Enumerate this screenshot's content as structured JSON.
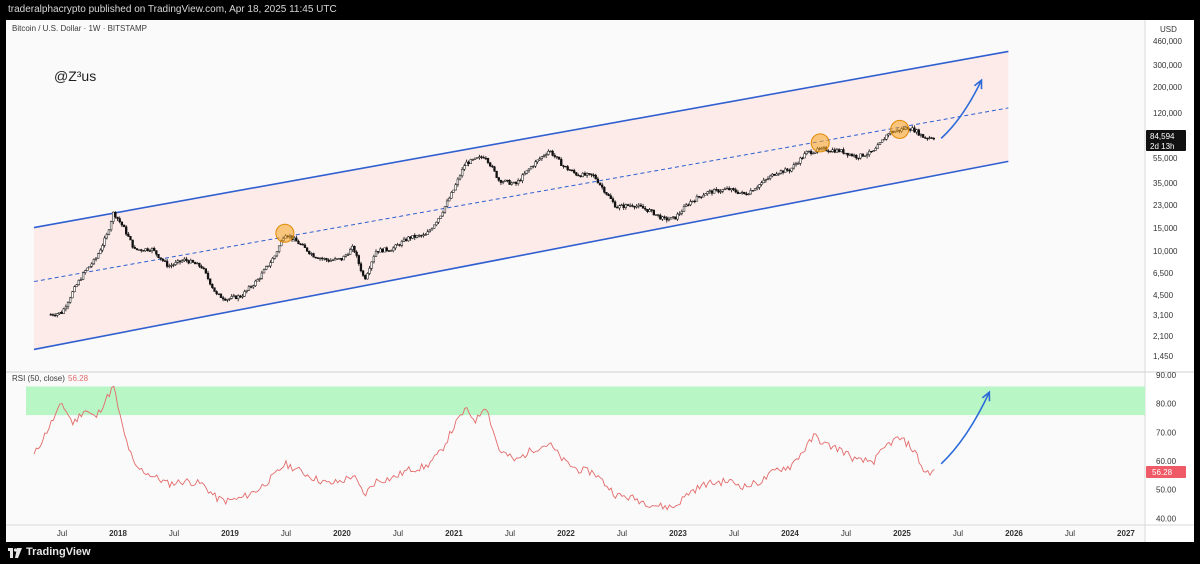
{
  "header": {
    "publish_line": "traderalphacrypto published on TradingView.com, Apr 18, 2025 11:45 UTC"
  },
  "chart": {
    "symbol_line": "Bitcoin / U.S. Dollar · 1W · BITSTAMP",
    "watermark": "@Z³us",
    "currency": "USD",
    "price_badge": "84,594",
    "countdown_badge": "2d 13h",
    "rsi_label": "RSI (50, close)",
    "rsi_value": "56.28",
    "rsi_badge": "56.28"
  },
  "footer": {
    "brand": "TradingView"
  },
  "colors": {
    "channel_line": "#2f5fd0",
    "channel_fill": "#fbe7e5",
    "rsi_line": "#e36b6b",
    "rsi_zone": "#b9f6c6",
    "highlight_circle": "#f5a623",
    "arrow": "#2a6ad9"
  },
  "chart_data": [
    {
      "type": "line",
      "subtype": "candlestick-weekly",
      "axis_scale": "log",
      "ylim": [
        900,
        600000
      ],
      "price_axis_ticks": [
        "460,000",
        "300,000",
        "200,000",
        "120,000",
        "84,594",
        "55,000",
        "35,000",
        "23,000",
        "15,000",
        "10,000",
        "6,500",
        "4,500",
        "3,100",
        "2,100",
        "1,450"
      ],
      "time_axis_ticks": [
        "Jul",
        "2018",
        "Jul",
        "2019",
        "Jul",
        "2020",
        "Jul",
        "2021",
        "Jul",
        "2022",
        "Jul",
        "2023",
        "Jul",
        "2024",
        "Jul",
        "2025",
        "Jul",
        "2026",
        "Jul",
        "2027"
      ],
      "series": [
        {
          "values": [
            [
              2017.4,
              2500
            ],
            [
              2017.5,
              2600
            ],
            [
              2017.6,
              4000
            ],
            [
              2017.7,
              5800
            ],
            [
              2017.8,
              7500
            ],
            [
              2017.9,
              12000
            ],
            [
              2017.96,
              19000
            ],
            [
              2018.05,
              14000
            ],
            [
              2018.15,
              9000
            ],
            [
              2018.3,
              9200
            ],
            [
              2018.45,
              6500
            ],
            [
              2018.6,
              7400
            ],
            [
              2018.75,
              6400
            ],
            [
              2018.88,
              3700
            ],
            [
              2018.97,
              3400
            ],
            [
              2019.1,
              3600
            ],
            [
              2019.25,
              5000
            ],
            [
              2019.4,
              8000
            ],
            [
              2019.49,
              12500
            ],
            [
              2019.6,
              10500
            ],
            [
              2019.75,
              8000
            ],
            [
              2019.88,
              7300
            ],
            [
              2020.0,
              7500
            ],
            [
              2020.1,
              9500
            ],
            [
              2020.2,
              5000
            ],
            [
              2020.3,
              8800
            ],
            [
              2020.45,
              9200
            ],
            [
              2020.6,
              11500
            ],
            [
              2020.75,
              12000
            ],
            [
              2020.88,
              18000
            ],
            [
              2021.0,
              30000
            ],
            [
              2021.1,
              50000
            ],
            [
              2021.28,
              58000
            ],
            [
              2021.4,
              36000
            ],
            [
              2021.55,
              33000
            ],
            [
              2021.7,
              48000
            ],
            [
              2021.85,
              65000
            ],
            [
              2021.98,
              47000
            ],
            [
              2022.1,
              40000
            ],
            [
              2022.25,
              39000
            ],
            [
              2022.45,
              21000
            ],
            [
              2022.6,
              22000
            ],
            [
              2022.75,
              19500
            ],
            [
              2022.87,
              16500
            ],
            [
              2022.97,
              16800
            ],
            [
              2023.1,
              23000
            ],
            [
              2023.25,
              28000
            ],
            [
              2023.45,
              30000
            ],
            [
              2023.6,
              27000
            ],
            [
              2023.75,
              34000
            ],
            [
              2023.88,
              42000
            ],
            [
              2024.0,
              44000
            ],
            [
              2024.15,
              62000
            ],
            [
              2024.3,
              66000
            ],
            [
              2024.45,
              64000
            ],
            [
              2024.6,
              57000
            ],
            [
              2024.75,
              63000
            ],
            [
              2024.88,
              92000
            ],
            [
              2024.97,
              96000
            ],
            [
              2025.05,
              102000
            ],
            [
              2025.12,
              96000
            ],
            [
              2025.2,
              83000
            ],
            [
              2025.3,
              84594
            ]
          ]
        }
      ],
      "channel": {
        "upper": [
          [
            2017.25,
            14000
          ],
          [
            2025.95,
            460000
          ]
        ],
        "middle": [
          [
            2017.25,
            4800
          ],
          [
            2025.95,
            150000
          ]
        ],
        "lower": [
          [
            2017.25,
            1250
          ],
          [
            2025.95,
            52000
          ]
        ]
      },
      "highlights": [
        [
          2019.49,
          12500
        ],
        [
          2024.27,
          75000
        ],
        [
          2024.98,
          98000
        ]
      ],
      "projection_arrow": [
        [
          2025.35,
          82000
        ],
        [
          2025.71,
          260000
        ]
      ]
    },
    {
      "type": "line",
      "title": "RSI (50, close)",
      "ylim": [
        38,
        90
      ],
      "tick_labels": [
        "90.00",
        "80.00",
        "70.00",
        "60.00",
        "56.28",
        "50.00",
        "40.00"
      ],
      "zone": [
        76,
        86
      ],
      "series": [
        {
          "values": [
            [
              2017.25,
              62
            ],
            [
              2017.4,
              73
            ],
            [
              2017.5,
              80
            ],
            [
              2017.6,
              73
            ],
            [
              2017.7,
              78
            ],
            [
              2017.8,
              75
            ],
            [
              2017.9,
              82
            ],
            [
              2017.96,
              86
            ],
            [
              2018.05,
              70
            ],
            [
              2018.15,
              58
            ],
            [
              2018.3,
              55
            ],
            [
              2018.45,
              52
            ],
            [
              2018.6,
              53
            ],
            [
              2018.75,
              52
            ],
            [
              2018.88,
              47
            ],
            [
              2018.97,
              46
            ],
            [
              2019.1,
              47
            ],
            [
              2019.25,
              50
            ],
            [
              2019.4,
              55
            ],
            [
              2019.49,
              59
            ],
            [
              2019.6,
              57
            ],
            [
              2019.75,
              54
            ],
            [
              2019.88,
              52
            ],
            [
              2020.0,
              53
            ],
            [
              2020.1,
              55
            ],
            [
              2020.2,
              48
            ],
            [
              2020.3,
              53
            ],
            [
              2020.45,
              54
            ],
            [
              2020.6,
              57
            ],
            [
              2020.75,
              58
            ],
            [
              2020.88,
              63
            ],
            [
              2021.0,
              72
            ],
            [
              2021.1,
              78
            ],
            [
              2021.2,
              74
            ],
            [
              2021.28,
              80
            ],
            [
              2021.4,
              64
            ],
            [
              2021.55,
              60
            ],
            [
              2021.7,
              64
            ],
            [
              2021.85,
              66
            ],
            [
              2021.98,
              60
            ],
            [
              2022.1,
              57
            ],
            [
              2022.25,
              56
            ],
            [
              2022.45,
              48
            ],
            [
              2022.6,
              47
            ],
            [
              2022.75,
              45
            ],
            [
              2022.87,
              44
            ],
            [
              2022.97,
              44
            ],
            [
              2023.1,
              49
            ],
            [
              2023.25,
              52
            ],
            [
              2023.45,
              53
            ],
            [
              2023.6,
              51
            ],
            [
              2023.75,
              53
            ],
            [
              2023.88,
              57
            ],
            [
              2024.0,
              58
            ],
            [
              2024.15,
              65
            ],
            [
              2024.22,
              69
            ],
            [
              2024.3,
              66
            ],
            [
              2024.45,
              64
            ],
            [
              2024.6,
              60
            ],
            [
              2024.75,
              60
            ],
            [
              2024.88,
              66
            ],
            [
              2024.97,
              68
            ],
            [
              2025.05,
              66
            ],
            [
              2025.12,
              63
            ],
            [
              2025.2,
              56
            ],
            [
              2025.3,
              56.28
            ]
          ]
        }
      ],
      "projection_arrow": [
        [
          2025.35,
          59
        ],
        [
          2025.78,
          84
        ]
      ]
    }
  ]
}
